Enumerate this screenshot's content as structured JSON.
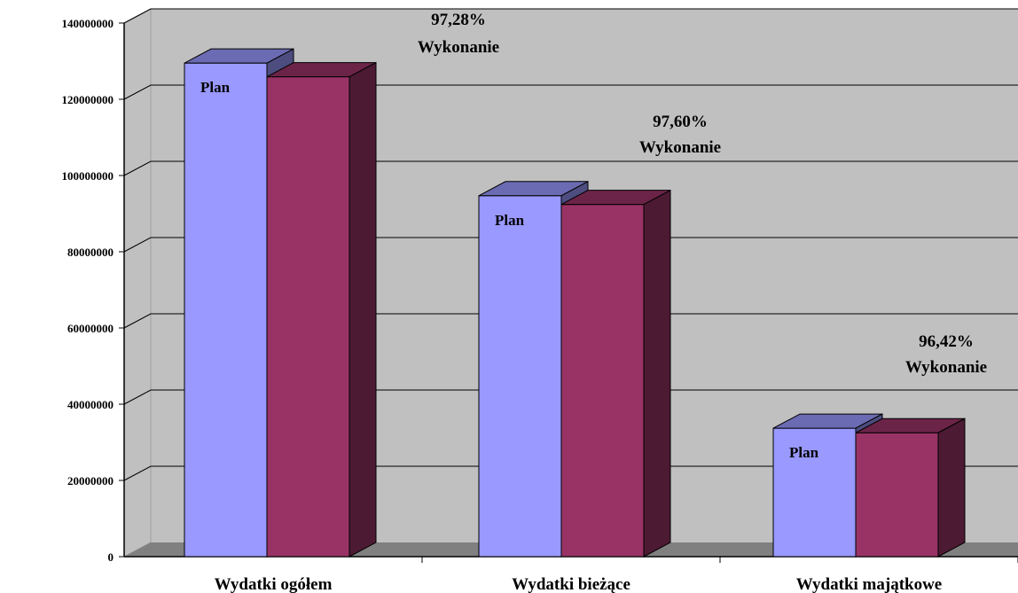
{
  "chart_data": {
    "type": "bar",
    "style": "3d-clustered",
    "categories": [
      "Wydatki ogółem",
      "Wydatki bieżące",
      "Wydatki majątkowe"
    ],
    "series": [
      {
        "values": [
          129500000,
          94700000,
          33700000
        ],
        "color": "#9999ff",
        "bar_label": "Plan"
      },
      {
        "values": [
          125900000,
          92400000,
          32500000
        ],
        "color": "#993366"
      }
    ],
    "annotations": [
      {
        "category": "Wydatki ogółem",
        "line1": "97,28%",
        "line2": "Wykonanie"
      },
      {
        "category": "Wydatki bieżące",
        "line1": "97,60%",
        "line2": "Wykonanie"
      },
      {
        "category": "Wydatki majątkowe",
        "line1": "96,42%",
        "line2": "Wykonanie"
      }
    ],
    "yticks": [
      "0",
      "20000000",
      "40000000",
      "60000000",
      "80000000",
      "100000000",
      "120000000",
      "140000000"
    ],
    "ylim": [
      0,
      140000000
    ],
    "grid": true,
    "legend": "none",
    "colors": {
      "wall": "#c0c0c0",
      "floor": "#808080",
      "gridline": "#000000"
    }
  }
}
